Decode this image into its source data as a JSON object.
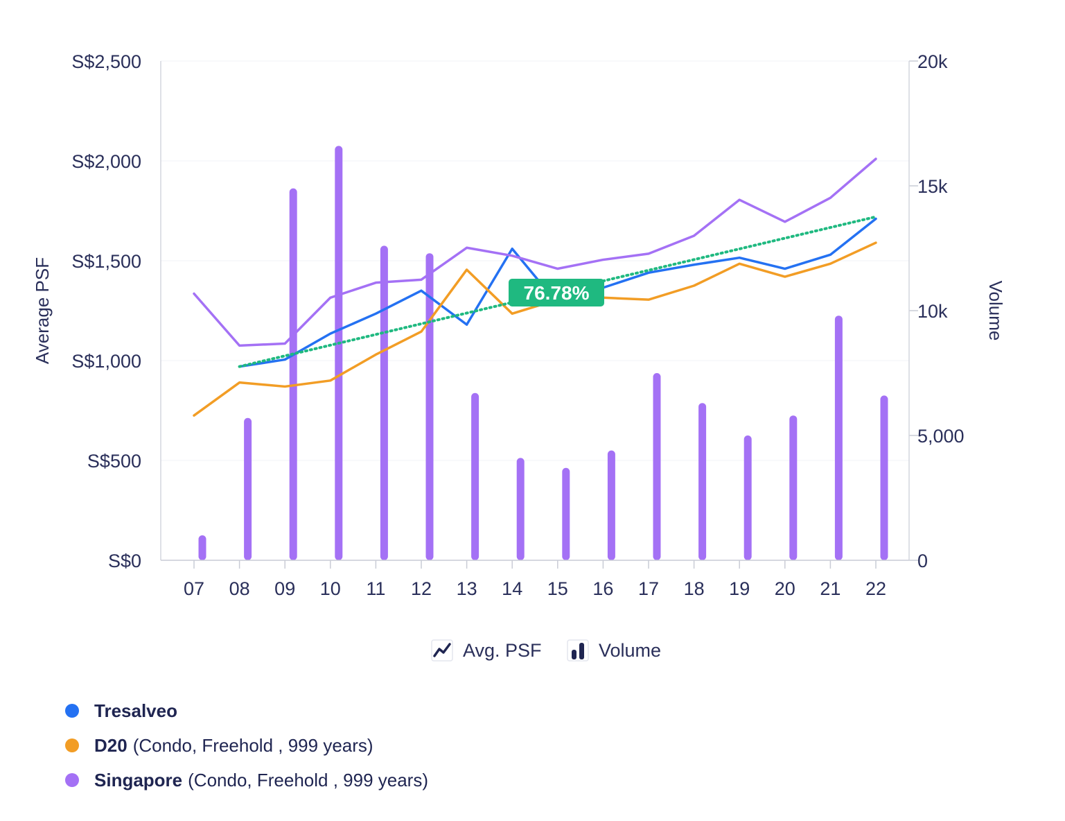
{
  "chart_data": {
    "type": "bar+line",
    "categories": [
      "07",
      "08",
      "09",
      "10",
      "11",
      "12",
      "13",
      "14",
      "15",
      "16",
      "17",
      "18",
      "19",
      "20",
      "21",
      "22"
    ],
    "y_left": {
      "label": "Average PSF",
      "ticks": [
        "S$0",
        "S$500",
        "S$1,000",
        "S$1,500",
        "S$2,000",
        "S$2,500"
      ],
      "range": [
        0,
        2500
      ]
    },
    "y_right": {
      "label": "Volume",
      "ticks": [
        "0",
        "5,000",
        "10k",
        "15k",
        "20k"
      ],
      "range": [
        0,
        20000
      ]
    },
    "volume_series": {
      "name": "Singapore",
      "values": [
        1000,
        5700,
        14900,
        16600,
        12600,
        12300,
        6700,
        4100,
        3700,
        4400,
        7500,
        6300,
        5000,
        5800,
        9800,
        6600
      ]
    },
    "psf_series": [
      {
        "name": "Tresalveo",
        "values": [
          null,
          970,
          1005,
          1135,
          1235,
          1350,
          1180,
          1560,
          1285,
          1365,
          1440,
          1480,
          1515,
          1460,
          1530,
          1710
        ]
      },
      {
        "name": "D20",
        "values": [
          725,
          890,
          870,
          900,
          1030,
          1145,
          1455,
          1235,
          1305,
          1315,
          1305,
          1375,
          1485,
          1420,
          1485,
          1590
        ]
      },
      {
        "name": "Singapore",
        "values": [
          1335,
          1075,
          1085,
          1315,
          1390,
          1405,
          1565,
          1525,
          1460,
          1505,
          1535,
          1625,
          1805,
          1695,
          1815,
          2010
        ]
      }
    ],
    "trendline": {
      "from": [
        1,
        970
      ],
      "to": [
        15,
        1720
      ]
    },
    "trend_label": "76.78%",
    "grid": true
  },
  "legend_toggles": {
    "psf_label": "Avg. PSF",
    "volume_label": "Volume"
  },
  "legend": [
    {
      "name": "Tresalveo",
      "desc": ""
    },
    {
      "name": "D20",
      "desc": "(Condo, Freehold , 999 years)"
    },
    {
      "name": "Singapore",
      "desc": "(Condo, Freehold , 999 years)"
    }
  ],
  "colors": {
    "tresalveo": "#2471f2",
    "d20": "#f29d25",
    "singapore": "#a471f5",
    "trend": "#1fb980",
    "axis_text": "#2a2f5a"
  }
}
